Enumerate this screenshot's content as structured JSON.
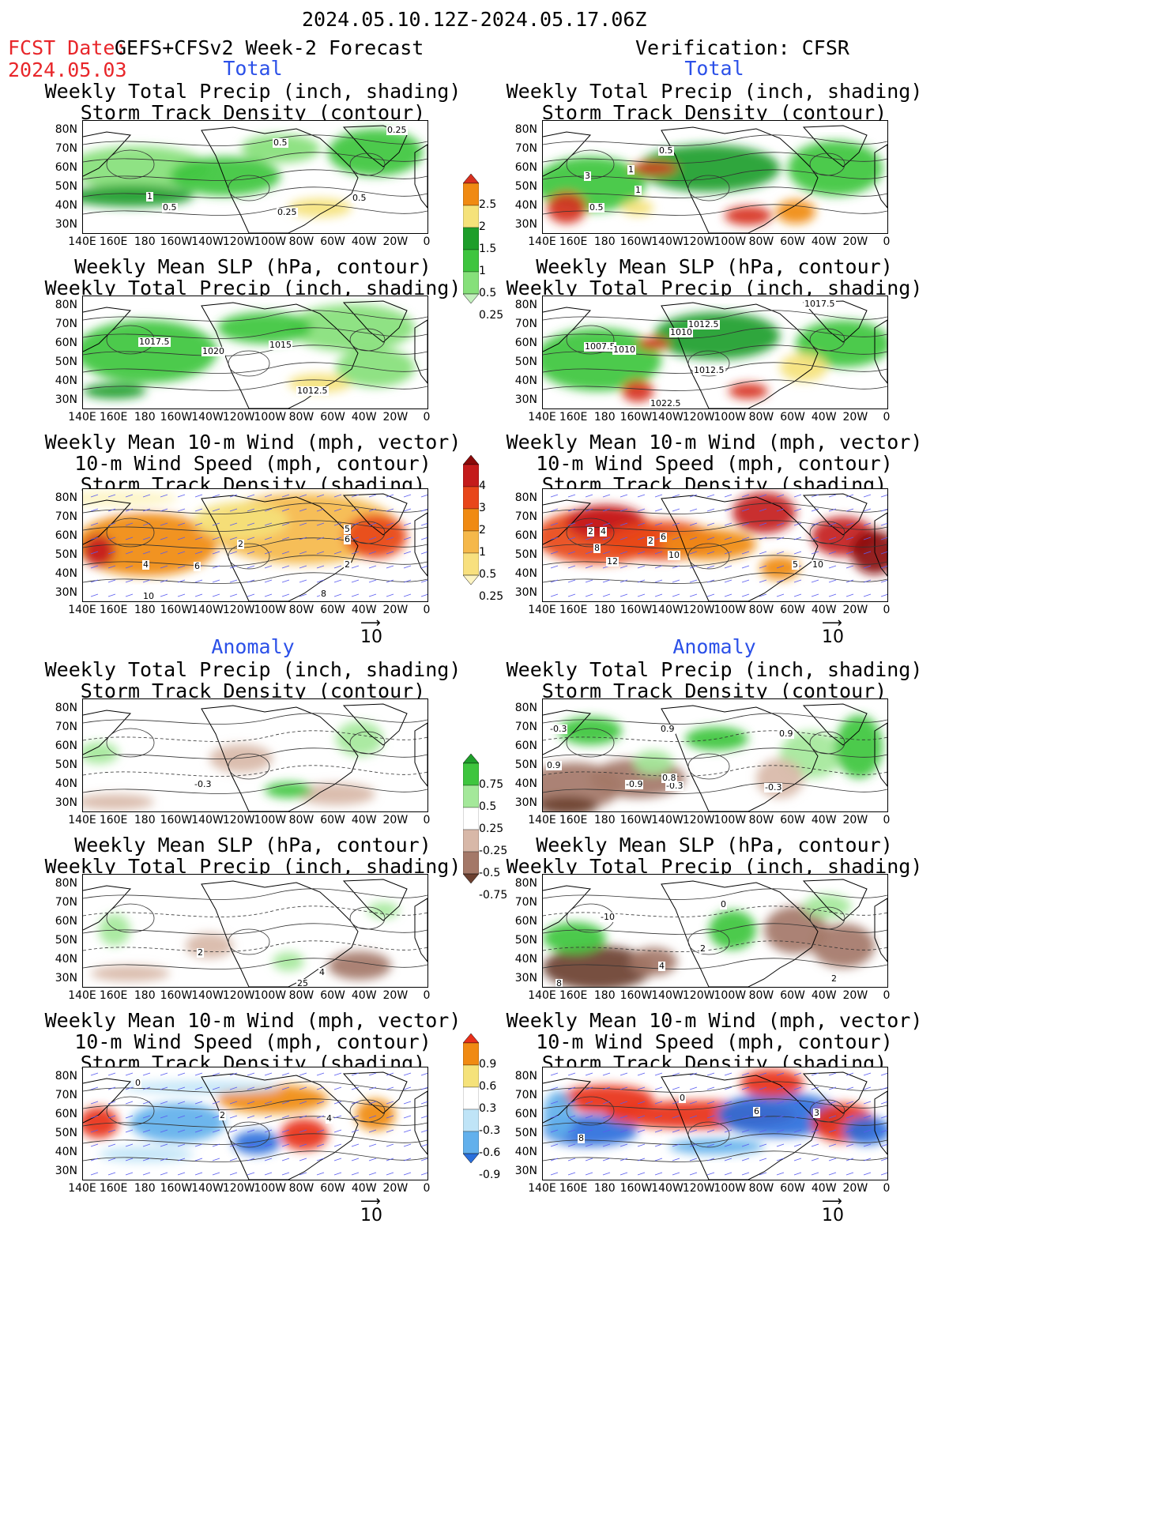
{
  "header": {
    "date_range": "2024.05.10.12Z-2024.05.17.06Z",
    "fcst_label": "FCST Date:",
    "fcst_model": "GEFS+CFSv2 Week-2 Forecast",
    "fcst_date": "2024.05.03",
    "verification": "Verification: CFSR"
  },
  "sections": {
    "total": "Total",
    "anomaly": "Anomaly"
  },
  "titles": {
    "precip_storm": [
      "Weekly Total Precip (inch, shading)",
      "Storm Track Density (contour)"
    ],
    "slp_precip": [
      "Weekly Mean SLP (hPa, contour)",
      "Weekly Total Precip (inch, shading)"
    ],
    "wind": [
      "Weekly Mean 10-m Wind (mph, vector)",
      "10-m Wind Speed (mph, contour)",
      "Storm Track Density (shading)"
    ]
  },
  "axes": {
    "lat_labels": [
      "80N",
      "70N",
      "60N",
      "50N",
      "40N",
      "30N"
    ],
    "lon_labels": [
      "140E",
      "160E",
      "180",
      "160W",
      "140W",
      "120W",
      "100W",
      "80W",
      "60W",
      "40W",
      "20W",
      "0"
    ]
  },
  "wind_reference": "10",
  "colorbars": {
    "precip_total": {
      "labels": [
        "2.5",
        "2",
        "1.5",
        "1",
        "0.5",
        "0.25"
      ],
      "colors": [
        "#d7301f",
        "#f08a12",
        "#f5e27a",
        "#1e9e2a",
        "#3ec53e",
        "#86e07a",
        "#c3f0bd"
      ]
    },
    "storm_total": {
      "labels": [
        "4",
        "3",
        "2",
        "1",
        "0.5",
        "0.25"
      ],
      "colors": [
        "#8b0a0a",
        "#c41b1b",
        "#e8461a",
        "#f08a12",
        "#f5b84a",
        "#f8e07e",
        "#fdf4c2"
      ]
    },
    "precip_anom": {
      "labels": [
        "0.75",
        "0.5",
        "0.25",
        "-0.25",
        "-0.5",
        "-0.75"
      ],
      "colors": [
        "#1e9e2a",
        "#3ec53e",
        "#a4e89a",
        "#ffffff",
        "#d8b8a8",
        "#a47868",
        "#6b4030"
      ]
    },
    "storm_anom": {
      "labels": [
        "0.9",
        "0.6",
        "0.3",
        "-0.3",
        "-0.6",
        "-0.9"
      ],
      "colors": [
        "#e8301a",
        "#f08a12",
        "#f5e27a",
        "#ffffff",
        "#bfe4f7",
        "#62b0ec",
        "#2a6fdc"
      ]
    }
  },
  "map_labels": {
    "L1": [
      "0.25",
      "0.5",
      "1",
      "0.5",
      "0.25",
      "0.5"
    ],
    "L2": [
      "1017.5",
      "1020",
      "1015",
      "1012.5"
    ],
    "L3": [
      "4",
      "2",
      "6",
      "6",
      "8",
      "10",
      "5",
      "2"
    ],
    "L4": [
      "-0.3"
    ],
    "L5": [
      "2",
      "4",
      "25"
    ],
    "L6": [
      "0",
      "2",
      "4"
    ],
    "R1": [
      "0.5",
      "3",
      "1",
      "1",
      "0.5"
    ],
    "R2": [
      "1017.5",
      "1012.5",
      "1010",
      "1007.5",
      "1010",
      "1012.5",
      "1022.5"
    ],
    "R3": [
      "2",
      "4",
      "8",
      "12",
      "2",
      "6",
      "10",
      "5",
      "10"
    ],
    "R4": [
      "-0.3",
      "0.9",
      "0.9",
      "-0.9",
      "-0.3",
      "0.8",
      "-0.3",
      "0.9"
    ],
    "R5": [
      "-10",
      "0",
      "2",
      "4",
      "2",
      "8"
    ],
    "R6": [
      "0",
      "6",
      "3",
      "8"
    ]
  }
}
